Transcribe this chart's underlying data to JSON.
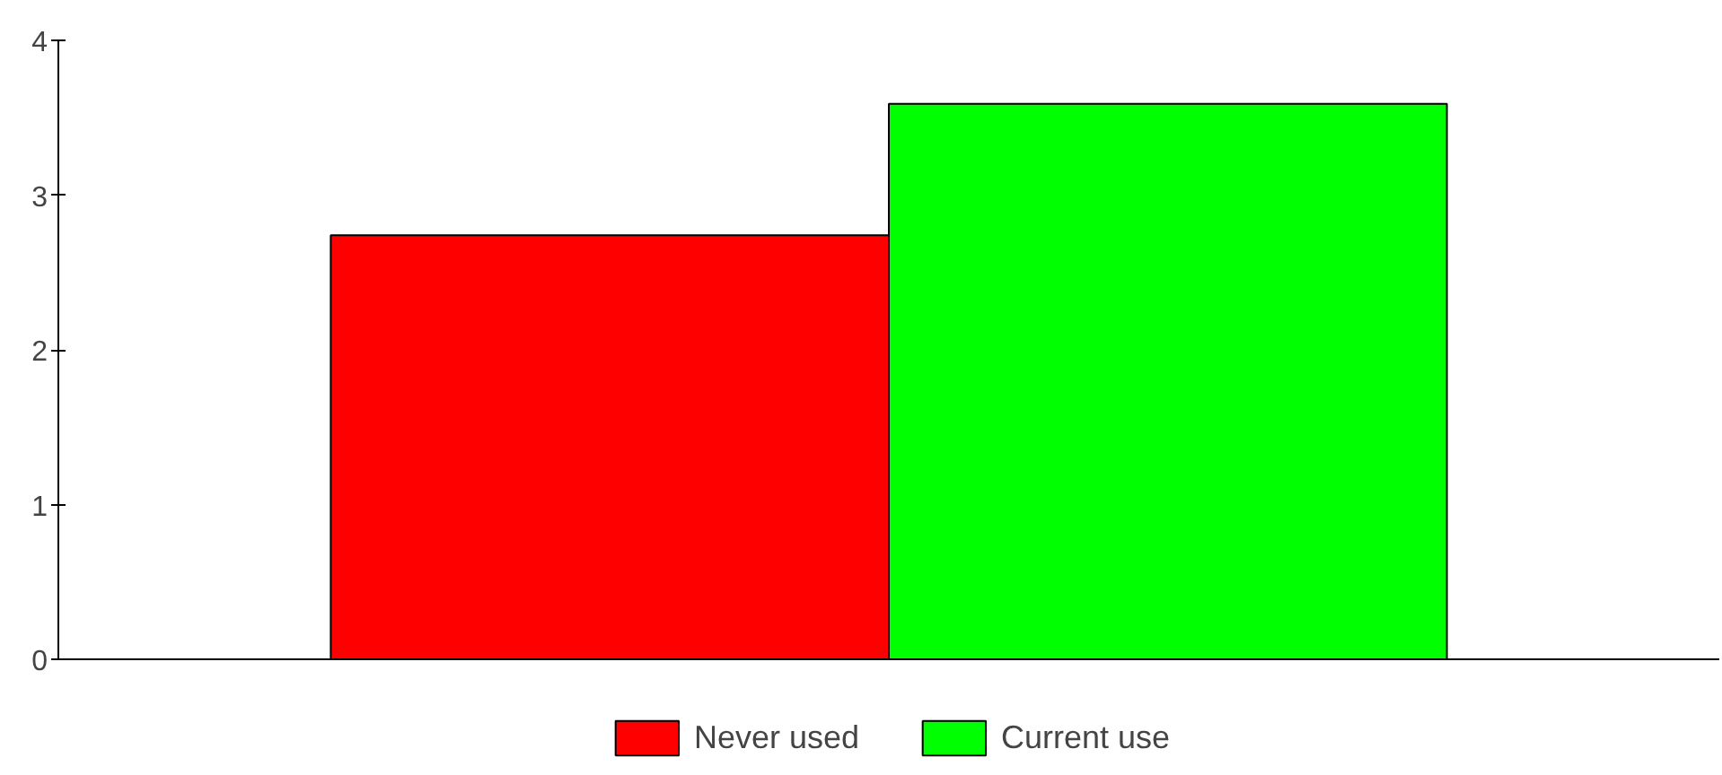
{
  "chart_data": {
    "type": "bar",
    "categories": [
      null
    ],
    "series": [
      {
        "name": "Never used",
        "color": "#ff0000",
        "values": [
          2.74
        ]
      },
      {
        "name": "Current use",
        "color": "#00ff00",
        "values": [
          3.59
        ]
      }
    ],
    "ylim": [
      0,
      4
    ],
    "yticks": [
      0,
      1,
      2,
      3,
      4
    ],
    "grid": false,
    "legend": "bottom"
  }
}
